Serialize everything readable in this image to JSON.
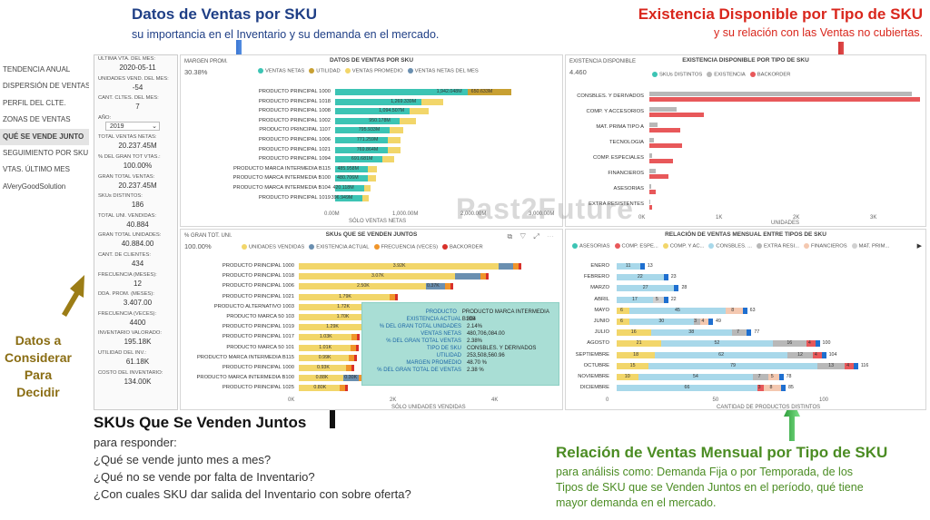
{
  "annotations": {
    "ventas": {
      "title": "Datos de Ventas por SKU",
      "sub": "su importancia en el Inventario y su demanda en el mercado."
    },
    "existencia": {
      "title": "Existencia Disponible por Tipo de SKU",
      "sub": "y su relación con las Ventas no cubiertas."
    },
    "datos_line1": "Datos a",
    "datos_line2": "Considerar",
    "datos_line3": "Para",
    "datos_line4": "Decidir",
    "skus": {
      "title": "SKUs Que Se Venden Juntos",
      "l1": "para responder:",
      "l2": "¿Qué se vende junto mes a mes?",
      "l3": "¿Qué no se vende por falta de Inventario?",
      "l4": "¿Con cuales SKU dar salida del Inventario con sobre oferta?"
    },
    "relacion": {
      "title": "Relación de Ventas Mensual por Tipo de SKU",
      "l1": "para análisis como: Demanda Fija o por Temporada, de los",
      "l2": "Tipos de SKU que se Venden Juntos en el período, qué tiene",
      "l3": "mayor demanda en el mercado."
    }
  },
  "nav": [
    "TENDENCIA ANUAL",
    "DISPERSIÓN DE VENTAS",
    "PERFIL DEL CLTE.",
    "ZONAS DE VENTAS",
    "QUÉ SE VENDE JUNTO",
    "SEGUIMIENTO POR SKU",
    "VTAS. ÚLTIMO MES",
    "AVeryGoodSolution"
  ],
  "kpis": [
    {
      "label": "ULTIMA VTA. DEL MES:",
      "value": "2020-05-11"
    },
    {
      "label": "UNIDADES VEND. DEL MES:",
      "value": "-54"
    },
    {
      "label": "CANT. CLTES. DEL MES:",
      "value": "7"
    },
    {
      "label": "AÑO:",
      "value": "2019"
    },
    {
      "label": "TOTAL VENTAS NETAS:",
      "value": "20.237.45M"
    },
    {
      "label": "% DEL GRAN TOT VTAS.:",
      "value": "100.00%"
    },
    {
      "label": "GRAN TOTAL VENTAS:",
      "value": "20.237.45M"
    },
    {
      "label": "SKUs DISTINTOS:",
      "value": "186"
    },
    {
      "label": "TOTAL UNI. VENDIDAS:",
      "value": "40.884"
    },
    {
      "label": "GRAN TOTAL UNIDADES:",
      "value": "40.884.00"
    },
    {
      "label": "CANT. DE CLIENTES:",
      "value": "434"
    },
    {
      "label": "FRECUENCIA (MESES):",
      "value": "12"
    },
    {
      "label": "DDA. PROM. (MESES):",
      "value": "3.407.00"
    },
    {
      "label": "FRECUENCIA (VECES):",
      "value": "4400"
    },
    {
      "label": "INVENTARIO VALORADO:",
      "value": "195.18K"
    },
    {
      "label": "UTILIDAD DEL INV.:",
      "value": "61.18K"
    },
    {
      "label": "COSTO DEL INVENTARIO:",
      "value": "134.00K"
    }
  ],
  "ventas_panel": {
    "title": "DATOS DE VENTAS POR SKU",
    "margin_label": "MARGEN PROM.",
    "margin_value": "30.38%",
    "legend": [
      {
        "name": "VENTAS NETAS",
        "color": "#3cc4b4"
      },
      {
        "name": "UTILIDAD",
        "color": "#c8a032"
      },
      {
        "name": "VENTAS PROMEDIO",
        "color": "#f2d66a"
      },
      {
        "name": "VENTAS NETAS DEL MES",
        "color": "#6a8fb0"
      }
    ],
    "axis_title": "SÓLO VENTAS NETAS",
    "axis_ticks": [
      "0.00M",
      "1,000.00M",
      "2,000.00M",
      "3,000.00M"
    ],
    "rows": [
      {
        "label": "PRODUCTO PRINCIPAL 1000",
        "v": 1942.048,
        "t": "1,942.048M",
        "u": 650.633,
        "ut": "650.633M"
      },
      {
        "label": "PRODUCTO PRINCIPAL 1018",
        "v": 1269.339,
        "t": "1,269.339M"
      },
      {
        "label": "PRODUCTO PRINCIPAL 1008",
        "v": 1094.507,
        "t": "1,094.507M"
      },
      {
        "label": "PRODUCTO PRINCIPAL 1002",
        "v": 950.178,
        "t": "950.178M"
      },
      {
        "label": "PRODUCTO PRINCIPAL 1107",
        "v": 795.933,
        "t": "795.933M"
      },
      {
        "label": "PRODUCTO PRINCIPAL 1006",
        "v": 771.259,
        "t": "771.259M"
      },
      {
        "label": "PRODUCTO PRINCIPAL 1021",
        "v": 769.864,
        "t": "769.864M"
      },
      {
        "label": "PRODUCTO PRINCIPAL 1094",
        "v": 691.681,
        "t": "691.681M"
      },
      {
        "label": "PRODUCTO MARCA INTERMEDIA B115",
        "v": 485.958,
        "t": "485.958M"
      },
      {
        "label": "PRODUCTO MARCA INTERMEDIA B100",
        "v": 480.706,
        "t": "480.706M"
      },
      {
        "label": "PRODUCTO MARCA INTERMEDIA B104",
        "v": 420.118,
        "t": "420.118M"
      },
      {
        "label": "PRODUCTO PRINCIPAL 1019",
        "v": 396.949,
        "t": "396.949M"
      }
    ]
  },
  "existencia_panel": {
    "title": "EXISTENCIA DISPONIBLE POR TIPO DE SKU",
    "kpi_label": "EXISTENCIA DISPONIBLE",
    "kpi_value": "4.460",
    "legend": [
      {
        "name": "SKUs DISTINTOS",
        "color": "#3cc4b4"
      },
      {
        "name": "EXISTENCIA",
        "color": "#b8b8b8"
      },
      {
        "name": "BACKORDER",
        "color": "#e8585a"
      }
    ],
    "axis_title": "UNIDADES",
    "axis_ticks": [
      "0K",
      "1K",
      "2K",
      "3K"
    ],
    "rows": [
      {
        "label": "CONSBLES. Y DERIVADOS",
        "existencia": 3400,
        "backorder": 3500
      },
      {
        "label": "COMP. Y ACCESORIOS",
        "existencia": 350,
        "backorder": 700
      },
      {
        "label": "MAT. PRIMA TIPO A",
        "existencia": 100,
        "backorder": 400
      },
      {
        "label": "TECNOLOGIA",
        "existencia": 60,
        "backorder": 420
      },
      {
        "label": "COMP. ESPECIALES",
        "existencia": 30,
        "backorder": 300
      },
      {
        "label": "FINANCIEROS",
        "existencia": 80,
        "backorder": 250
      },
      {
        "label": "ASESORIAS",
        "existencia": 20,
        "backorder": 80
      },
      {
        "label": "EXTRA RESISTENTES",
        "existencia": 10,
        "backorder": 30
      }
    ]
  },
  "juntos_panel": {
    "title": "SKUs QUE SE VENDEN JUNTOS",
    "pct_label": "% GRAN TOT. UNI.",
    "pct_value": "100.00%",
    "legend": [
      {
        "name": "UNIDADES VENDIDAS",
        "color": "#f2d66a"
      },
      {
        "name": "EXISTENCIA ACTUAL",
        "color": "#6a8fb0"
      },
      {
        "name": "FRECUENCIA (VECES)",
        "color": "#f0952a"
      },
      {
        "name": "BACKORDER",
        "color": "#d8302a"
      }
    ],
    "axis_title": "SÓLO UNIDADES VENDIDAS",
    "axis_ticks": [
      "0K",
      "2K",
      "4K"
    ],
    "rows": [
      {
        "label": "PRODUCTO PRINCIPAL 1000",
        "v": 3.92,
        "t": "3.92K",
        "e": 0.3
      },
      {
        "label": "PRODUCTO PRINCIPAL 1018",
        "v": 3.07,
        "t": "3.07K",
        "e": 0.5
      },
      {
        "label": "PRODUCTO PRINCIPAL 1006",
        "v": 2.5,
        "t": "2.50K",
        "e": 0.37,
        "et": "0.37K"
      },
      {
        "label": "PRODUCTO PRINCIPAL 1021",
        "v": 1.79,
        "t": "1.79K",
        "e": 0
      },
      {
        "label": "PRODUCTO ALTERNATIVO 1003",
        "v": 1.72,
        "t": "1.72K",
        "e": 0
      },
      {
        "label": "PRODUCTO MARCA 50 103",
        "v": 1.7,
        "t": "1.70K",
        "e": 0
      },
      {
        "label": "PRODUCTO PRINCIPAL 1019",
        "v": 1.29,
        "t": "1.29K",
        "e": 0
      },
      {
        "label": "PRODUCTO PRINCIPAL 1017",
        "v": 1.03,
        "t": "1.03K",
        "e": 0
      },
      {
        "label": "PRODUCTO MARCA 50 101",
        "v": 1.01,
        "t": "1.01K",
        "e": 0
      },
      {
        "label": "PRODUCTO MARCA INTERMEDIA B115",
        "v": 0.99,
        "t": "0.99K",
        "e": 0
      },
      {
        "label": "PRODUCTO PRINCIPAL 1000",
        "v": 0.93,
        "t": "0.93K",
        "e": 0
      },
      {
        "label": "PRODUCTO MARCA INTERMEDIA B100",
        "v": 0.88,
        "t": "0.88K",
        "e": 0.3,
        "et": "0.30K"
      },
      {
        "label": "PRODUCTO PRINCIPAL 1025",
        "v": 0.8,
        "t": "0.80K",
        "e": 0
      }
    ]
  },
  "tooltip": [
    {
      "k": "PRODUCTO",
      "v": "PRODUCTO MARCA INTERMEDIA B100"
    },
    {
      "k": "EXISTENCIA ACTUAL",
      "v": "304"
    },
    {
      "k": "% DEL GRAN TOTAL UNIDADES",
      "v": "2.14%"
    },
    {
      "k": "VENTAS NETAS",
      "v": "480,706,084.00"
    },
    {
      "k": "% DEL GRAN TOTAL VENTAS",
      "v": "2.38%"
    },
    {
      "k": "TIPO DE SKU",
      "v": "CONSBLES. Y DERIVADOS"
    },
    {
      "k": "UTILIDAD",
      "v": "253,508,560.96"
    },
    {
      "k": "MARGEN PROMEDIO",
      "v": "48.70 %"
    },
    {
      "k": "% DEL GRAN TOTAL DE VENTAS",
      "v": "2.38 %"
    }
  ],
  "relacion_panel": {
    "title": "RELACIÓN DE VENTAS MENSUAL ENTRE TIPOS DE SKU",
    "legend": [
      {
        "name": "ASESORIAS",
        "color": "#3cc4b4"
      },
      {
        "name": "COMP. ESPE...",
        "color": "#e8585a"
      },
      {
        "name": "COMP. Y AC...",
        "color": "#f2d66a"
      },
      {
        "name": "CONSBLES. ...",
        "color": "#a8d8ea"
      },
      {
        "name": "EXTRA RESI...",
        "color": "#b8b8b8"
      },
      {
        "name": "FINANCIEROS",
        "color": "#f4c8b0"
      },
      {
        "name": "MAT. PRIM...",
        "color": "#d0d0d0"
      }
    ],
    "axis_title": "CANTIDAD DE PRODUCTOS DISTINTOS",
    "axis_ticks": [
      "0",
      "50",
      "100"
    ],
    "rows": [
      {
        "label": "ENERO",
        "segs": [
          {
            "c": "#a8d8ea",
            "v": 11,
            "t": "11"
          }
        ],
        "total": "13"
      },
      {
        "label": "FEBRERO",
        "segs": [
          {
            "c": "#a8d8ea",
            "v": 22,
            "t": "22"
          }
        ],
        "total": "23"
      },
      {
        "label": "MARZO",
        "segs": [
          {
            "c": "#a8d8ea",
            "v": 27,
            "t": "27"
          }
        ],
        "total": "28"
      },
      {
        "label": "ABRIL",
        "segs": [
          {
            "c": "#a8d8ea",
            "v": 17,
            "t": "17"
          },
          {
            "c": "#d0d0d0",
            "v": 5,
            "t": "5"
          }
        ],
        "total": "22"
      },
      {
        "label": "MAYO",
        "segs": [
          {
            "c": "#f2d66a",
            "v": 6,
            "t": "6"
          },
          {
            "c": "#a8d8ea",
            "v": 45,
            "t": "45"
          },
          {
            "c": "#f4c8b0",
            "v": 8,
            "t": "8"
          }
        ],
        "total": "63"
      },
      {
        "label": "JUNIO",
        "segs": [
          {
            "c": "#f2d66a",
            "v": 6,
            "t": "6"
          },
          {
            "c": "#a8d8ea",
            "v": 30,
            "t": "30"
          },
          {
            "c": "#b8b8b8",
            "v": 3,
            "t": "3"
          },
          {
            "c": "#f4c8b0",
            "v": 4,
            "t": "4"
          }
        ],
        "total": "49"
      },
      {
        "label": "JULIO",
        "segs": [
          {
            "c": "#f2d66a",
            "v": 16,
            "t": "16"
          },
          {
            "c": "#a8d8ea",
            "v": 38,
            "t": "38"
          },
          {
            "c": "#b8b8b8",
            "v": 7,
            "t": "7"
          }
        ],
        "total": "77"
      },
      {
        "label": "AGOSTO",
        "segs": [
          {
            "c": "#f2d66a",
            "v": 21,
            "t": "21"
          },
          {
            "c": "#a8d8ea",
            "v": 52,
            "t": "52"
          },
          {
            "c": "#b8b8b8",
            "v": 16,
            "t": "16"
          },
          {
            "c": "#e8585a",
            "v": 4,
            "t": "4"
          }
        ],
        "total": "100"
      },
      {
        "label": "SEPTIEMBRE",
        "segs": [
          {
            "c": "#f2d66a",
            "v": 18,
            "t": "18"
          },
          {
            "c": "#a8d8ea",
            "v": 62,
            "t": "62"
          },
          {
            "c": "#b8b8b8",
            "v": 12,
            "t": "12"
          },
          {
            "c": "#e8585a",
            "v": 4,
            "t": "4"
          }
        ],
        "total": "104"
      },
      {
        "label": "OCTUBRE",
        "segs": [
          {
            "c": "#f2d66a",
            "v": 15,
            "t": "15"
          },
          {
            "c": "#a8d8ea",
            "v": 79,
            "t": "79"
          },
          {
            "c": "#b8b8b8",
            "v": 13,
            "t": "13"
          },
          {
            "c": "#e8585a",
            "v": 4,
            "t": "4"
          }
        ],
        "total": "116"
      },
      {
        "label": "NOVIEMBRE",
        "segs": [
          {
            "c": "#f2d66a",
            "v": 10,
            "t": "10"
          },
          {
            "c": "#a8d8ea",
            "v": 54,
            "t": "54"
          },
          {
            "c": "#b8b8b8",
            "v": 7,
            "t": "7"
          },
          {
            "c": "#f4c8b0",
            "v": 5,
            "t": "5"
          }
        ],
        "total": "78"
      },
      {
        "label": "DICIEMBRE",
        "segs": [
          {
            "c": "#a8d8ea",
            "v": 66,
            "t": "66"
          },
          {
            "c": "#e8585a",
            "v": 3,
            "t": "3"
          },
          {
            "c": "#f4c8b0",
            "v": 8,
            "t": "8"
          }
        ],
        "total": "85"
      }
    ]
  },
  "watermark": "Past2Future"
}
